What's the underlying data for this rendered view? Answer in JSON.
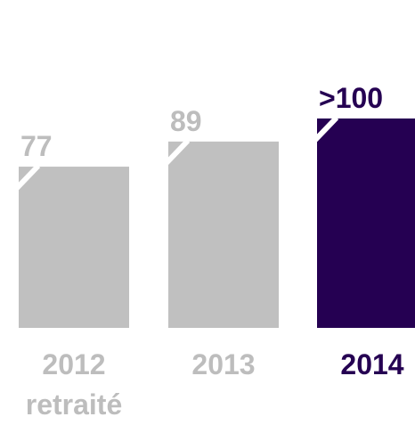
{
  "chart_data": {
    "type": "bar",
    "title": "",
    "xlabel": "",
    "ylabel": "",
    "categories": [
      {
        "line1": "2012",
        "line2": "retraité"
      },
      {
        "line1": "2013",
        "line2": ""
      },
      {
        "line1": "2014",
        "line2": ""
      }
    ],
    "values": [
      77,
      89,
      100
    ],
    "value_labels": [
      "77",
      "89",
      ">100"
    ],
    "colors": [
      "#c0c0c0",
      "#c0c0c0",
      "#250052"
    ],
    "label_colors": [
      "#bdbdbd",
      "#bdbdbd",
      "#250052"
    ],
    "grid": false,
    "legend": "none"
  }
}
